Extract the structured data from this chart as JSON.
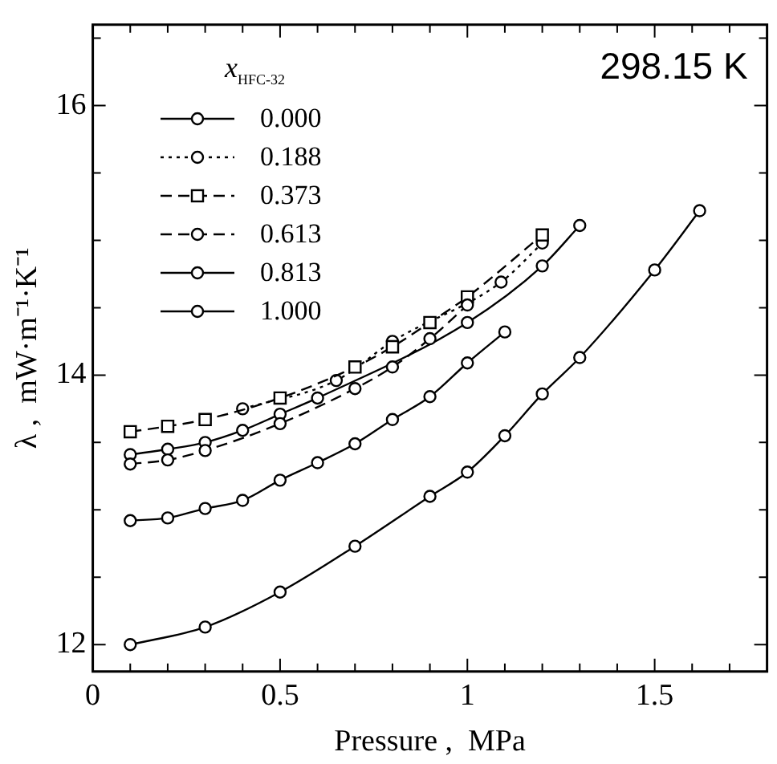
{
  "chart_data": {
    "type": "line",
    "xlabel": "Pressure ,  MPa",
    "ylabel": "λ ,  mW·m⁻¹·K⁻¹",
    "legend_title": "x$_{HFC-32}$",
    "annotations": [
      "298.15 K"
    ],
    "xlim": [
      0,
      1.8
    ],
    "ylim": [
      11.8,
      16.6
    ],
    "xticks": [
      0,
      {
        "value": 0.1,
        "label": null
      },
      {
        "value": 0.2,
        "label": null
      },
      {
        "value": 0.3,
        "label": null
      },
      {
        "value": 0.4,
        "label": null
      },
      0.5,
      {
        "value": 0.6,
        "label": null
      },
      {
        "value": 0.7,
        "label": null
      },
      {
        "value": 0.8,
        "label": null
      },
      {
        "value": 0.9,
        "label": null
      },
      1,
      {
        "value": 1.1,
        "label": null
      },
      {
        "value": 1.2,
        "label": null
      },
      {
        "value": 1.3,
        "label": null
      },
      {
        "value": 1.4,
        "label": null
      },
      1.5,
      {
        "value": 1.6,
        "label": null
      },
      {
        "value": 1.7,
        "label": null
      }
    ],
    "yticks": [
      12,
      {
        "value": 12.5,
        "label": null
      },
      {
        "value": 13,
        "label": null
      },
      {
        "value": 13.5,
        "label": null
      },
      14,
      {
        "value": 14.5,
        "label": null
      },
      {
        "value": 15,
        "label": null
      },
      {
        "value": 15.5,
        "label": null
      },
      16,
      {
        "value": 16.5,
        "label": null
      }
    ],
    "legend": "top left",
    "series": [
      {
        "name": "0.000",
        "color": "#000000",
        "marker": "circle",
        "line_style": "solid",
        "x": [
          0.1,
          0.2,
          0.3,
          0.4,
          0.5,
          0.6,
          1.0,
          1.2,
          1.3
        ],
        "values": [
          13.41,
          13.45,
          13.5,
          13.59,
          13.71,
          13.83,
          14.39,
          14.81,
          15.11
        ]
      },
      {
        "name": "0.188",
        "color": "#000000",
        "marker": "circle",
        "line_style": "dotted",
        "x": [
          0.4,
          0.65,
          0.8,
          1.09,
          1.2
        ],
        "values": [
          13.75,
          13.96,
          14.25,
          14.69,
          14.98
        ]
      },
      {
        "name": "0.373",
        "color": "#000000",
        "marker": "square",
        "line_style": "dashed",
        "x": [
          0.1,
          0.2,
          0.3,
          0.5,
          0.7,
          0.8,
          0.9,
          1.0,
          1.2
        ],
        "values": [
          13.58,
          13.62,
          13.67,
          13.83,
          14.06,
          14.21,
          14.39,
          14.58,
          15.04
        ]
      },
      {
        "name": "0.613",
        "color": "#000000",
        "marker": "circle",
        "line_style": "dashed",
        "x": [
          0.1,
          0.2,
          0.3,
          0.5,
          0.7,
          0.8,
          0.9,
          1.0
        ],
        "values": [
          13.34,
          13.37,
          13.44,
          13.64,
          13.9,
          14.06,
          14.27,
          14.52
        ]
      },
      {
        "name": "0.813",
        "color": "#000000",
        "marker": "circle",
        "line_style": "solid",
        "x": [
          0.1,
          0.2,
          0.3,
          0.4,
          0.5,
          0.6,
          0.7,
          0.8,
          0.9,
          1.0,
          1.1
        ],
        "values": [
          12.92,
          12.94,
          13.01,
          13.07,
          13.22,
          13.35,
          13.49,
          13.67,
          13.84,
          14.09,
          14.32
        ]
      },
      {
        "name": "1.000",
        "color": "#000000",
        "marker": "circle",
        "line_style": "solid",
        "x": [
          0.1,
          0.3,
          0.5,
          0.7,
          0.9,
          1.0,
          1.1,
          1.2,
          1.3,
          1.5,
          1.62
        ],
        "values": [
          12.0,
          12.13,
          12.39,
          12.73,
          13.1,
          13.28,
          13.55,
          13.86,
          14.13,
          14.78,
          15.22
        ]
      }
    ]
  }
}
